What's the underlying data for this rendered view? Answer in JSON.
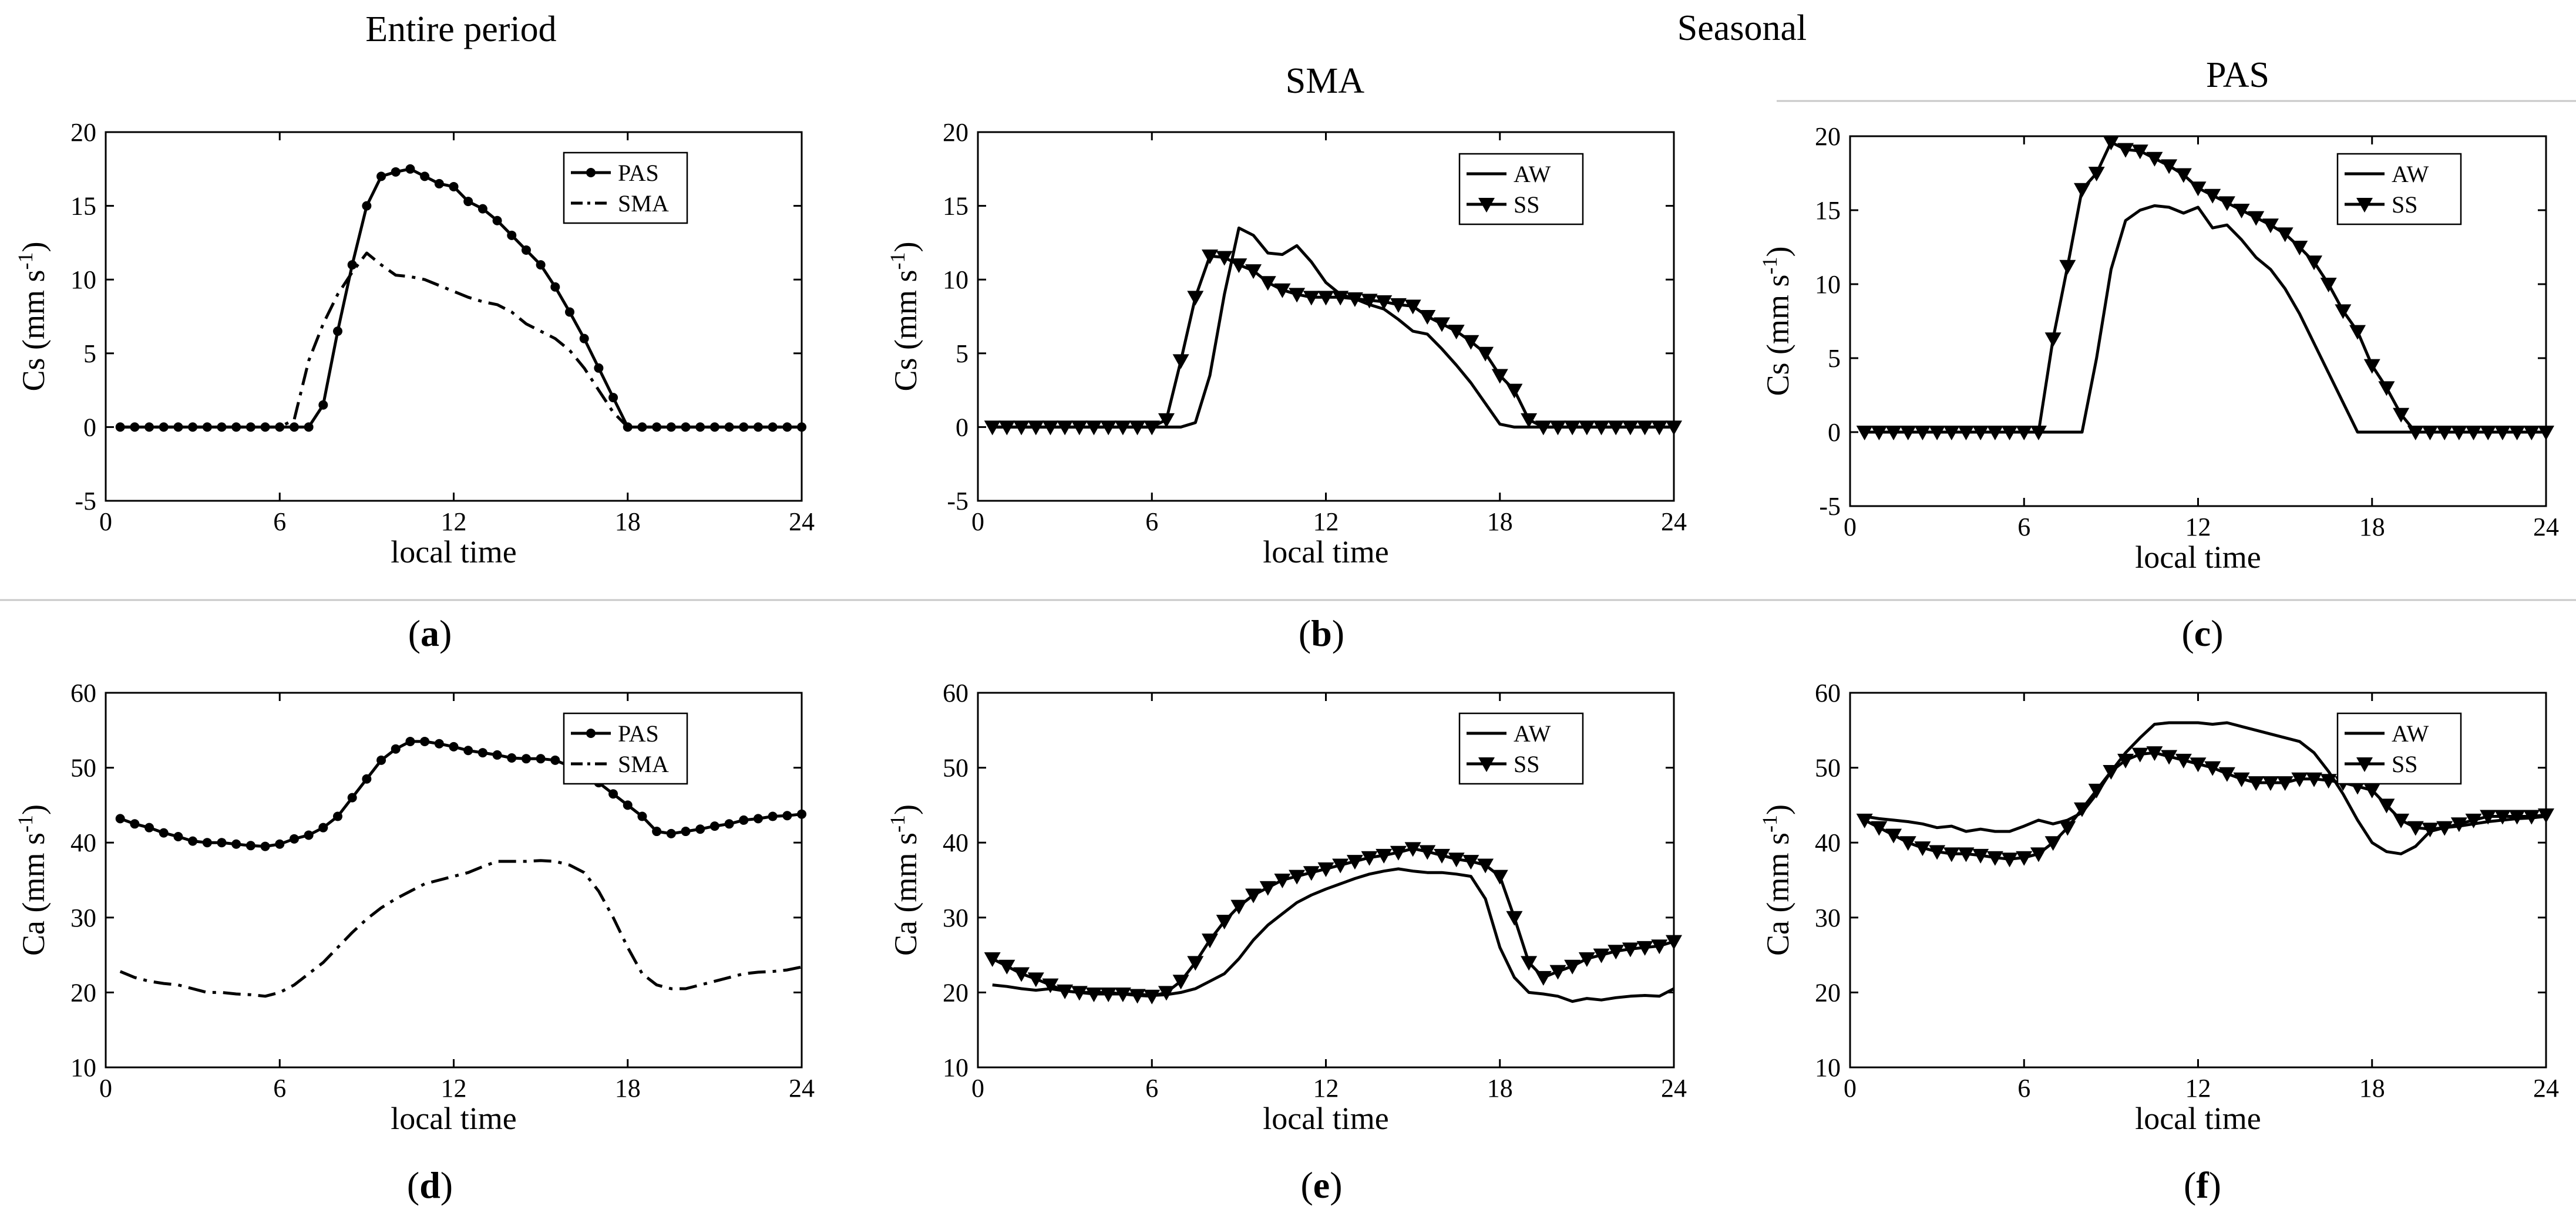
{
  "headers": {
    "left": "Entire period",
    "middle": "Seasonal",
    "sma": "SMA",
    "pas": "PAS"
  },
  "chart_data": [
    {
      "id": "a",
      "type": "line",
      "panel_label": "(a)",
      "panel_letter": "a",
      "xlabel": "local time",
      "ylabel": "Cs (mm s-1)",
      "ylabel_base": "Cs (mm s",
      "ylabel_sup": "-1",
      "ylabel_end": ")",
      "xlim": [
        0,
        24
      ],
      "ylim": [
        -5,
        20
      ],
      "xticks": [
        0,
        6,
        12,
        18,
        24
      ],
      "yticks": [
        -5,
        0,
        5,
        10,
        15,
        20
      ],
      "x": [
        0.5,
        1,
        1.5,
        2,
        2.5,
        3,
        3.5,
        4,
        4.5,
        5,
        5.5,
        6,
        6.5,
        7,
        7.5,
        8,
        8.5,
        9,
        9.5,
        10,
        10.5,
        11,
        11.5,
        12,
        12.5,
        13,
        13.5,
        14,
        14.5,
        15,
        15.5,
        16,
        16.5,
        17,
        17.5,
        18,
        18.5,
        19,
        19.5,
        20,
        20.5,
        21,
        21.5,
        22,
        22.5,
        23,
        23.5,
        24
      ],
      "series": [
        {
          "name": "PAS",
          "style": "solid-dot",
          "values": [
            0,
            0,
            0,
            0,
            0,
            0,
            0,
            0,
            0,
            0,
            0,
            0,
            0,
            0,
            1.5,
            6.5,
            11,
            15,
            17,
            17.3,
            17.5,
            17,
            16.5,
            16.3,
            15.3,
            14.8,
            14,
            13,
            12,
            11,
            9.5,
            7.8,
            6,
            4,
            2,
            0,
            0,
            0,
            0,
            0,
            0,
            0,
            0,
            0,
            0,
            0,
            0,
            0
          ]
        },
        {
          "name": "SMA",
          "style": "dashdot",
          "values": [
            0,
            0,
            0,
            0,
            0,
            0,
            0,
            0,
            0,
            0,
            0,
            0,
            0.5,
            4.5,
            7,
            9,
            10.5,
            11.8,
            11,
            10.3,
            10.2,
            10,
            9.6,
            9.2,
            8.8,
            8.5,
            8.3,
            7.8,
            7,
            6.5,
            6,
            5.2,
            4,
            2.5,
            1,
            0,
            0,
            0,
            0,
            0,
            0,
            0,
            0,
            0,
            0,
            0,
            0,
            0
          ]
        }
      ]
    },
    {
      "id": "b",
      "type": "line",
      "panel_label": "(b)",
      "panel_letter": "b",
      "xlabel": "local time",
      "ylabel": "Cs (mm s-1)",
      "ylabel_base": "Cs (mm s",
      "ylabel_sup": "-1",
      "ylabel_end": ")",
      "xlim": [
        0,
        24
      ],
      "ylim": [
        -5,
        20
      ],
      "xticks": [
        0,
        6,
        12,
        18,
        24
      ],
      "yticks": [
        -5,
        0,
        5,
        10,
        15,
        20
      ],
      "x": [
        0.5,
        1,
        1.5,
        2,
        2.5,
        3,
        3.5,
        4,
        4.5,
        5,
        5.5,
        6,
        6.5,
        7,
        7.5,
        8,
        8.5,
        9,
        9.5,
        10,
        10.5,
        11,
        11.5,
        12,
        12.5,
        13,
        13.5,
        14,
        14.5,
        15,
        15.5,
        16,
        16.5,
        17,
        17.5,
        18,
        18.5,
        19,
        19.5,
        20,
        20.5,
        21,
        21.5,
        22,
        22.5,
        23,
        23.5,
        24
      ],
      "series": [
        {
          "name": "AW",
          "style": "solid",
          "values": [
            0,
            0,
            0,
            0,
            0,
            0,
            0,
            0,
            0,
            0,
            0,
            0,
            0,
            0,
            0.3,
            3.5,
            9,
            13.5,
            13,
            11.8,
            11.7,
            12.3,
            11.2,
            9.8,
            9,
            8.7,
            8.3,
            8,
            7.3,
            6.5,
            6.3,
            5.3,
            4.2,
            3,
            1.6,
            0.2,
            0,
            0,
            0,
            0,
            0,
            0,
            0,
            0,
            0,
            0,
            0,
            0
          ]
        },
        {
          "name": "SS",
          "style": "solid-triangle",
          "values": [
            0,
            0,
            0,
            0,
            0,
            0,
            0,
            0,
            0,
            0,
            0,
            0,
            0.5,
            4.5,
            8.8,
            11.6,
            11.5,
            11,
            10.6,
            9.8,
            9.3,
            9,
            8.8,
            8.8,
            8.8,
            8.7,
            8.6,
            8.5,
            8.3,
            8.2,
            7.5,
            7,
            6.5,
            5.8,
            5,
            3.5,
            2.5,
            0.5,
            0,
            0,
            0,
            0,
            0,
            0,
            0,
            0,
            0,
            0
          ]
        }
      ]
    },
    {
      "id": "c",
      "type": "line",
      "panel_label": "(c)",
      "panel_letter": "c",
      "xlabel": "local time",
      "ylabel": "Cs (mm s-1)",
      "ylabel_base": "Cs (mm s",
      "ylabel_sup": "-1",
      "ylabel_end": ")",
      "xlim": [
        0,
        24
      ],
      "ylim": [
        -5,
        20
      ],
      "xticks": [
        0,
        6,
        12,
        18,
        24
      ],
      "yticks": [
        -5,
        0,
        5,
        10,
        15,
        20
      ],
      "x": [
        0.5,
        1,
        1.5,
        2,
        2.5,
        3,
        3.5,
        4,
        4.5,
        5,
        5.5,
        6,
        6.5,
        7,
        7.5,
        8,
        8.5,
        9,
        9.5,
        10,
        10.5,
        11,
        11.5,
        12,
        12.5,
        13,
        13.5,
        14,
        14.5,
        15,
        15.5,
        16,
        16.5,
        17,
        17.5,
        18,
        18.5,
        19,
        19.5,
        20,
        20.5,
        21,
        21.5,
        22,
        22.5,
        23,
        23.5,
        24
      ],
      "series": [
        {
          "name": "AW",
          "style": "solid",
          "values": [
            0,
            0,
            0,
            0,
            0,
            0,
            0,
            0,
            0,
            0,
            0,
            0,
            0,
            0,
            0,
            0,
            5,
            11,
            14.3,
            15,
            15.3,
            15.2,
            14.8,
            15.2,
            13.8,
            14,
            13,
            11.8,
            11,
            9.7,
            8,
            6,
            4,
            2,
            0,
            0,
            0,
            0,
            0,
            0,
            0,
            0,
            0,
            0,
            0,
            0,
            0,
            0
          ]
        },
        {
          "name": "SS",
          "style": "solid-triangle",
          "values": [
            0,
            0,
            0,
            0,
            0,
            0,
            0,
            0,
            0,
            0,
            0,
            0,
            0,
            6.3,
            11.2,
            16.4,
            17.5,
            19.6,
            19.1,
            19,
            18.5,
            18,
            17.4,
            16.5,
            16,
            15.5,
            15,
            14.5,
            14,
            13.4,
            12.5,
            11.5,
            10,
            8.2,
            6.8,
            4.5,
            3,
            1.2,
            0,
            0,
            0,
            0,
            0,
            0,
            0,
            0,
            0,
            0
          ]
        }
      ]
    },
    {
      "id": "d",
      "type": "line",
      "panel_label": "(d)",
      "panel_letter": "d",
      "xlabel": "local time",
      "ylabel": "Ca (mm s-1)",
      "ylabel_base": "Ca (mm s",
      "ylabel_sup": "-1",
      "ylabel_end": ")",
      "xlim": [
        0,
        24
      ],
      "ylim": [
        10,
        60
      ],
      "xticks": [
        0,
        6,
        12,
        18,
        24
      ],
      "yticks": [
        10,
        20,
        30,
        40,
        50,
        60
      ],
      "x": [
        0.5,
        1,
        1.5,
        2,
        2.5,
        3,
        3.5,
        4,
        4.5,
        5,
        5.5,
        6,
        6.5,
        7,
        7.5,
        8,
        8.5,
        9,
        9.5,
        10,
        10.5,
        11,
        11.5,
        12,
        12.5,
        13,
        13.5,
        14,
        14.5,
        15,
        15.5,
        16,
        16.5,
        17,
        17.5,
        18,
        18.5,
        19,
        19.5,
        20,
        20.5,
        21,
        21.5,
        22,
        22.5,
        23,
        23.5,
        24
      ],
      "series": [
        {
          "name": "PAS",
          "style": "solid-dot",
          "values": [
            43.2,
            42.5,
            42,
            41.3,
            40.8,
            40.2,
            40,
            40,
            39.8,
            39.6,
            39.5,
            39.8,
            40.5,
            41,
            42,
            43.5,
            46,
            48.5,
            51,
            52.5,
            53.5,
            53.5,
            53.2,
            52.8,
            52.3,
            52,
            51.7,
            51.3,
            51.2,
            51.2,
            51,
            50.2,
            49.5,
            48,
            46.5,
            45,
            43.5,
            41.5,
            41.2,
            41.5,
            41.8,
            42.2,
            42.5,
            43,
            43.2,
            43.5,
            43.6,
            43.8
          ]
        },
        {
          "name": "SMA",
          "style": "dashdot",
          "values": [
            22.8,
            22,
            21.5,
            21.2,
            21,
            20.5,
            20,
            20,
            19.8,
            19.7,
            19.5,
            20,
            21,
            22.5,
            24,
            26,
            28,
            29.8,
            31.3,
            32.5,
            33.5,
            34.5,
            35,
            35.5,
            36,
            36.8,
            37.5,
            37.5,
            37.5,
            37.6,
            37.5,
            37,
            36,
            33.5,
            30,
            26,
            22.5,
            21,
            20.5,
            20.5,
            21,
            21.5,
            22,
            22.5,
            22.7,
            22.8,
            23,
            23.4
          ]
        }
      ]
    },
    {
      "id": "e",
      "type": "line",
      "panel_label": "(e)",
      "panel_letter": "e",
      "xlabel": "local time",
      "ylabel": "Ca (mm s-1)",
      "ylabel_base": "Ca (mm s",
      "ylabel_sup": "-1",
      "ylabel_end": ")",
      "xlim": [
        0,
        24
      ],
      "ylim": [
        10,
        60
      ],
      "xticks": [
        0,
        6,
        12,
        18,
        24
      ],
      "yticks": [
        10,
        20,
        30,
        40,
        50,
        60
      ],
      "x": [
        0.5,
        1,
        1.5,
        2,
        2.5,
        3,
        3.5,
        4,
        4.5,
        5,
        5.5,
        6,
        6.5,
        7,
        7.5,
        8,
        8.5,
        9,
        9.5,
        10,
        10.5,
        11,
        11.5,
        12,
        12.5,
        13,
        13.5,
        14,
        14.5,
        15,
        15.5,
        16,
        16.5,
        17,
        17.5,
        18,
        18.5,
        19,
        19.5,
        20,
        20.5,
        21,
        21.5,
        22,
        22.5,
        23,
        23.5,
        24
      ],
      "series": [
        {
          "name": "AW",
          "style": "solid",
          "values": [
            21,
            20.8,
            20.5,
            20.3,
            20.5,
            20.2,
            20,
            20,
            20,
            19.8,
            19.8,
            19.6,
            19.7,
            20,
            20.5,
            21.5,
            22.5,
            24.5,
            27,
            29,
            30.5,
            32,
            33,
            33.8,
            34.5,
            35.2,
            35.8,
            36.2,
            36.5,
            36.2,
            36,
            36,
            35.8,
            35.5,
            32.5,
            26,
            22,
            20,
            19.8,
            19.5,
            18.8,
            19.2,
            19,
            19.3,
            19.5,
            19.6,
            19.5,
            20.5
          ]
        },
        {
          "name": "SS",
          "style": "solid-triangle",
          "values": [
            24.5,
            23.5,
            22.5,
            21.8,
            21,
            20.2,
            20,
            19.8,
            19.8,
            19.8,
            19.6,
            19.5,
            20,
            21.5,
            24,
            27,
            29.5,
            31.5,
            33,
            34,
            35,
            35.5,
            36,
            36.5,
            37,
            37.5,
            38,
            38.3,
            38.7,
            39.2,
            38.8,
            38.3,
            37.8,
            37.5,
            37,
            35.5,
            30,
            24,
            22,
            22.8,
            23.5,
            24.5,
            25,
            25.5,
            25.8,
            26,
            26.2,
            26.8
          ]
        }
      ]
    },
    {
      "id": "f",
      "type": "line",
      "panel_label": "(f)",
      "panel_letter": "f",
      "xlabel": "local time",
      "ylabel": "Ca (mm s-1)",
      "ylabel_base": "Ca (mm s",
      "ylabel_sup": "-1",
      "ylabel_end": ")",
      "xlim": [
        0,
        24
      ],
      "ylim": [
        10,
        60
      ],
      "xticks": [
        0,
        6,
        12,
        18,
        24
      ],
      "yticks": [
        10,
        20,
        30,
        40,
        50,
        60
      ],
      "x": [
        0.5,
        1,
        1.5,
        2,
        2.5,
        3,
        3.5,
        4,
        4.5,
        5,
        5.5,
        6,
        6.5,
        7,
        7.5,
        8,
        8.5,
        9,
        9.5,
        10,
        10.5,
        11,
        11.5,
        12,
        12.5,
        13,
        13.5,
        14,
        14.5,
        15,
        15.5,
        16,
        16.5,
        17,
        17.5,
        18,
        18.5,
        19,
        19.5,
        20,
        20.5,
        21,
        21.5,
        22,
        22.5,
        23,
        23.5,
        24
      ],
      "series": [
        {
          "name": "AW",
          "style": "solid",
          "values": [
            43.5,
            43.2,
            43,
            42.8,
            42.5,
            42,
            42.2,
            41.5,
            41.8,
            41.5,
            41.5,
            42.2,
            43,
            42.5,
            43,
            44,
            46.5,
            49.5,
            52,
            54,
            55.8,
            56,
            56,
            56,
            55.8,
            56,
            55.5,
            55,
            54.5,
            54,
            53.5,
            52,
            49.5,
            46.5,
            43,
            40,
            38.8,
            38.5,
            39.5,
            41.5,
            42,
            42.2,
            42.5,
            42.8,
            43,
            43.2,
            43.3,
            43.5
          ]
        },
        {
          "name": "SS",
          "style": "solid-triangle",
          "values": [
            43,
            42,
            41,
            40,
            39.3,
            38.8,
            38.5,
            38.5,
            38.3,
            38,
            37.8,
            38,
            38.5,
            40,
            42,
            44.5,
            47,
            49.5,
            51,
            51.8,
            52,
            51.5,
            51,
            50.5,
            50,
            49.2,
            48.5,
            48,
            48,
            48,
            48.5,
            48.5,
            48.3,
            48,
            47.5,
            47,
            45,
            43,
            42,
            41.8,
            42,
            42.5,
            43,
            43.5,
            43.5,
            43.5,
            43.5,
            43.7
          ]
        }
      ]
    }
  ]
}
